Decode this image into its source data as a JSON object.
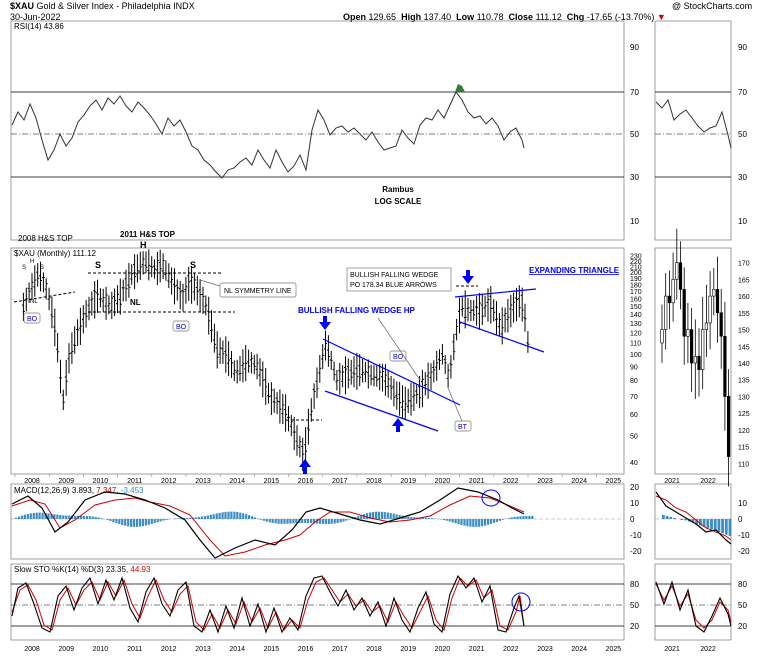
{
  "header": {
    "symbol": "$XAU",
    "name": "Gold & Silver Index - Philadelphia",
    "exchange": "INDX",
    "date": "30-Jun-2022",
    "watermark": "@ StockCharts.com",
    "ohlc": [
      {
        "label": "Open",
        "value": "129.65"
      },
      {
        "label": "High",
        "value": "137.40"
      },
      {
        "label": "Low",
        "value": "110.78"
      },
      {
        "label": "Close",
        "value": "111.12"
      },
      {
        "label": "Chg",
        "value": "-17.65 (-13.70%)"
      }
    ],
    "down_marker": "▼"
  },
  "rsi_panel": {
    "legend": "RSI(14) 43.86",
    "ticks": [
      "90",
      "70",
      "50",
      "30",
      "10"
    ],
    "note_line1": "Rambus",
    "note_line2": "LOG SCALE"
  },
  "price_panel": {
    "legend": "$XAU (Monthly) 111.12",
    "ticks": [
      "230",
      "220",
      "210",
      "200",
      "190",
      "180",
      "170",
      "160",
      "150",
      "140",
      "130",
      "120",
      "110",
      "100",
      "90",
      "80",
      "70",
      "60",
      "50",
      "40"
    ],
    "right_ticks": [
      "170",
      "165",
      "160",
      "155",
      "150",
      "145",
      "140",
      "135",
      "130",
      "125",
      "120",
      "115",
      "110"
    ]
  },
  "annotations": {
    "top_left": "2008 H&S TOP",
    "top_2011": "2011 H&S TOP",
    "h": "H",
    "s": "S",
    "nl": "NL",
    "bo": "BO",
    "bt": "BT",
    "nl_symmetry": "NL SYMMETRY LINE",
    "bullish_hp": "BULLISH FALLING WEDGE HP",
    "bullish_wedge_line1": "BULLISH FALLING WEDGE",
    "bullish_wedge_line2": "PO 178.34 BLUE ARROWS",
    "expanding": "EXPANDING TRIANGLE"
  },
  "macd_panel": {
    "label": "MACD(12,26,9)",
    "v1": "3.893,",
    "v2": "7.347,",
    "v3": "-3.453",
    "ticks": [
      "20",
      "10",
      "0",
      "-10",
      "-20"
    ]
  },
  "sto_panel": {
    "label": "Slow STO %K(14) %D(3)",
    "v1": "23.35,",
    "v2": "44.93",
    "ticks": [
      "80",
      "50",
      "20"
    ]
  },
  "x_axis": {
    "years": [
      "2008",
      "2009",
      "2010",
      "2011",
      "2012",
      "2013",
      "2014",
      "2015",
      "2016",
      "2017",
      "2018",
      "2019",
      "2020",
      "2021",
      "2022",
      "2023",
      "2024",
      "2025"
    ],
    "right_years": [
      "2021",
      "2022"
    ]
  },
  "colors": {
    "accent_blue": "#0000ff",
    "signal_red": "#cc0000",
    "hist_blue": "#3b8ec2",
    "grid": "#cccccc"
  },
  "chart_data": {
    "type": "ohlc",
    "title": "$XAU Gold & Silver Index - Philadelphia (Monthly)",
    "x": [
      "2008",
      "2009",
      "2010",
      "2011",
      "2012",
      "2013",
      "2014",
      "2015",
      "2016",
      "2017",
      "2018",
      "2019",
      "2020",
      "2021",
      "2022"
    ],
    "series": [
      {
        "name": "$XAU",
        "values": [
          160,
          100,
          160,
          205,
          175,
          120,
          85,
          55,
          80,
          85,
          75,
          90,
          140,
          145,
          111
        ]
      }
    ],
    "ylabel": "",
    "xlabel": "",
    "yscale": "log",
    "ylim": [
      38,
      235
    ]
  }
}
